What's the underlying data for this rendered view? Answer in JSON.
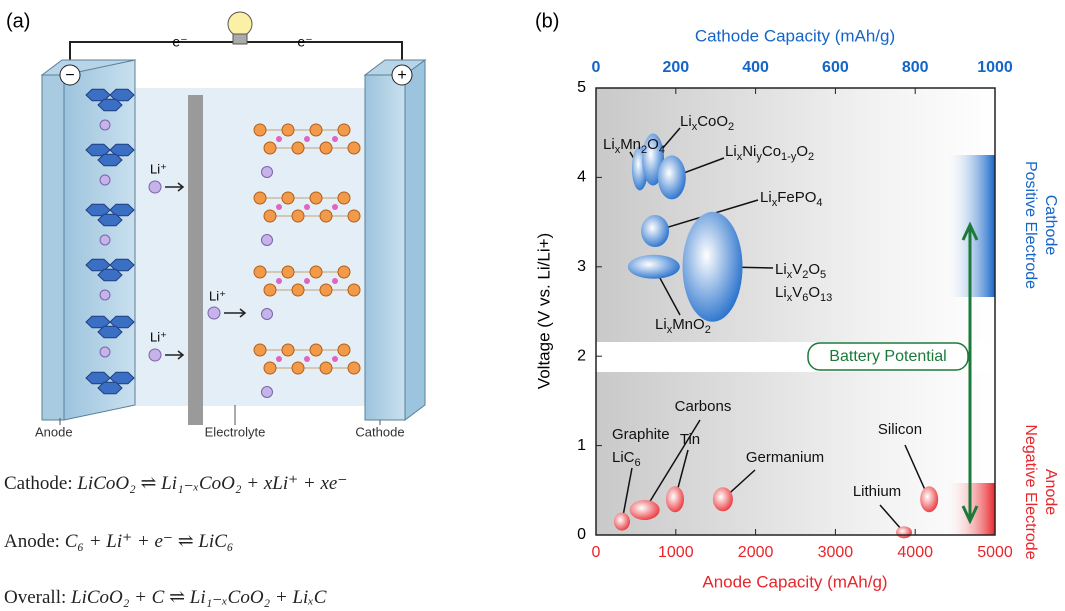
{
  "panel_a": {
    "tag": "(a)",
    "electron_left": "e⁻",
    "electron_right": "e⁻",
    "minus": "−",
    "plus": "+",
    "ions": [
      "Li⁺",
      "Li⁺",
      "Li⁺"
    ],
    "labels": {
      "anode": "Anode",
      "electrolyte": "Electrolyte",
      "cathode": "Cathode"
    },
    "equations": [
      {
        "name": "Cathode:",
        "formula": "LiCoO₂ ⇌ Li₁₋ₓCoO₂ + xLi⁺ + xe⁻"
      },
      {
        "name": "Anode:",
        "formula": "C₆ + Li⁺ + e⁻ ⇌ LiC₆"
      },
      {
        "name": "Overall:",
        "formula": "LiCoO₂ + C ⇌ Li₁₋ₓCoO₂ + LiₓC"
      }
    ]
  },
  "chart_data": {
    "type": "scatter",
    "tag": "(b)",
    "x2label": "Cathode Capacity (mAh/g)",
    "xlabel": "Anode Capacity (mAh/g)",
    "ylabel": "Voltage (V vs. Li/Li+)",
    "x2lim": [
      0,
      1000
    ],
    "x2ticks": [
      0,
      200,
      400,
      600,
      800,
      1000
    ],
    "xlim": [
      0,
      5000
    ],
    "xticks": [
      0,
      1000,
      2000,
      3000,
      4000,
      5000
    ],
    "ylim": [
      0,
      5
    ],
    "yticks": [
      0,
      1,
      2,
      3,
      4,
      5
    ],
    "side_labels": {
      "cathode": [
        "Cathode",
        "Positive Electrode"
      ],
      "anode": [
        "Anode",
        "Negative Electrode"
      ]
    },
    "annotation": "Battery Potential",
    "series": [
      {
        "axis": "x2",
        "color": "#1565c8",
        "points": [
          {
            "label": [
              "LixMn2O4"
            ],
            "x": 110,
            "y": 4.1
          },
          {
            "label": [
              "LixCoO2"
            ],
            "x": 143,
            "y": 4.2
          },
          {
            "label": [
              "LixNiyCo1-yO2"
            ],
            "x": 190,
            "y": 4.0
          },
          {
            "label": [
              "LixFePO4"
            ],
            "x": 148,
            "y": 3.4
          },
          {
            "label": [
              "LixV2O5",
              "LixV6O13"
            ],
            "x": 292,
            "y": 3.0
          },
          {
            "label": [
              "LixMnO2"
            ],
            "x": 145,
            "y": 3.0
          }
        ]
      },
      {
        "axis": "x",
        "color": "#e8262b",
        "points": [
          {
            "label": [
              "Graphite",
              "LiC6"
            ],
            "x": 325,
            "y": 0.15
          },
          {
            "label": [
              "Carbons"
            ],
            "x": 610,
            "y": 0.28
          },
          {
            "label": [
              "Tin"
            ],
            "x": 990,
            "y": 0.4
          },
          {
            "label": [
              "Germanium"
            ],
            "x": 1590,
            "y": 0.4
          },
          {
            "label": [
              "Lithium"
            ],
            "x": 3860,
            "y": 0.03
          },
          {
            "label": [
              "Silicon"
            ],
            "x": 4175,
            "y": 0.4
          }
        ]
      }
    ]
  }
}
